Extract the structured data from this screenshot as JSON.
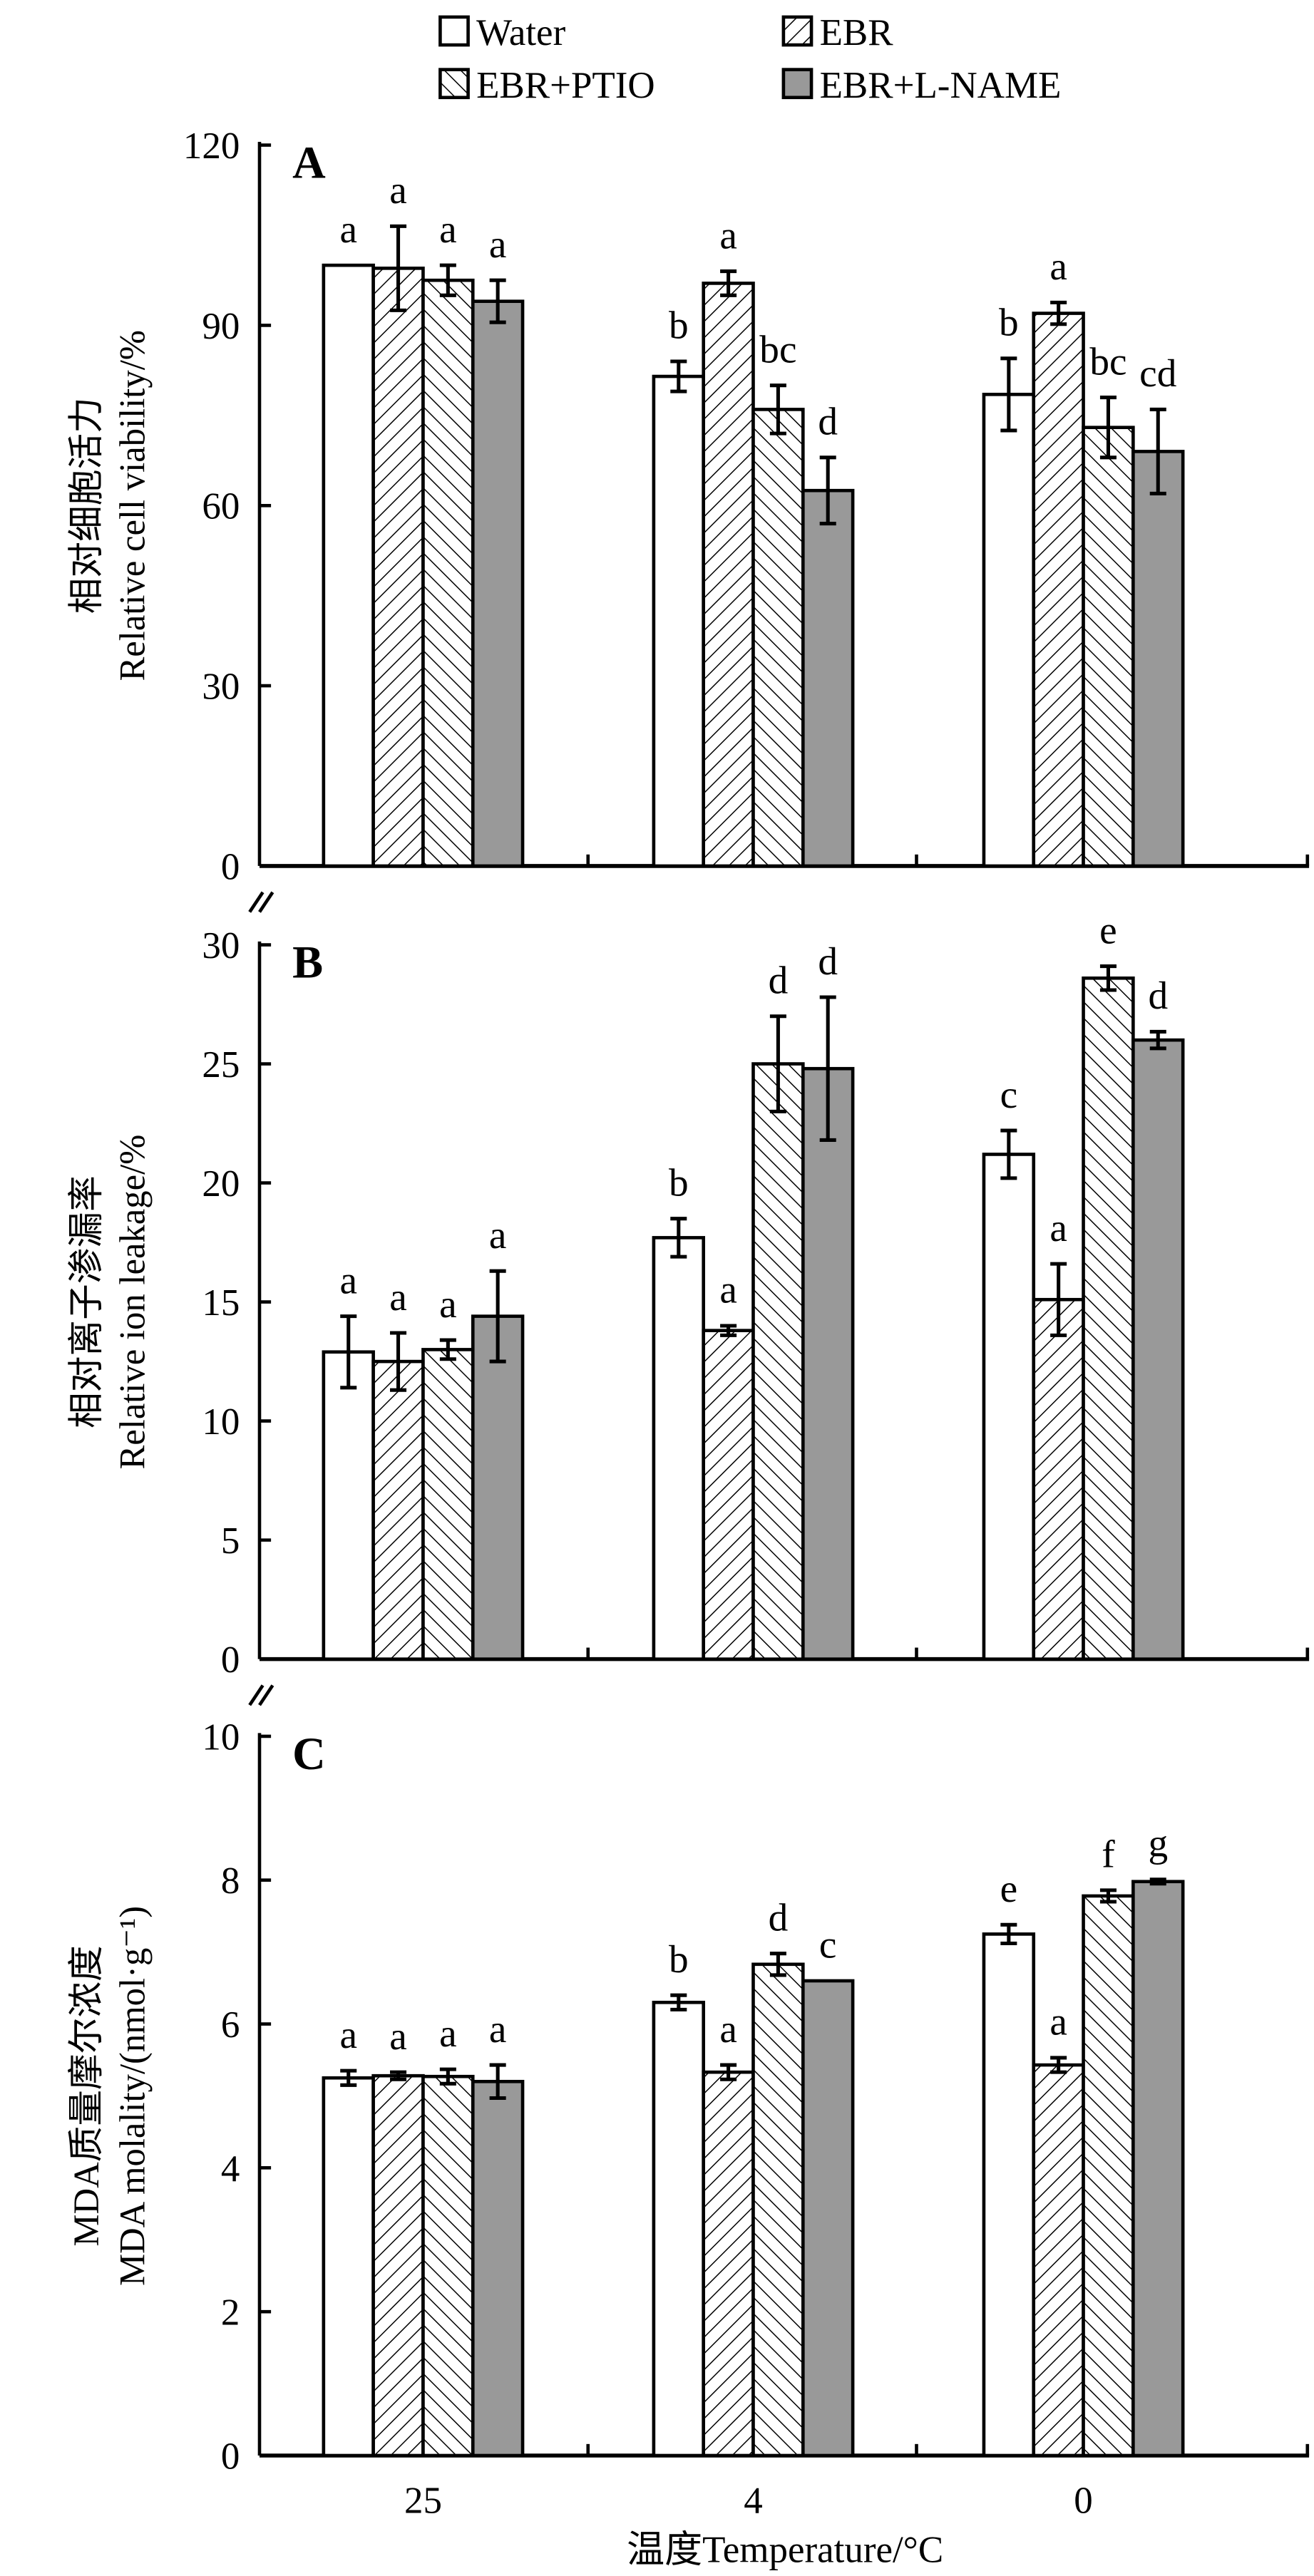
{
  "chart_data": {
    "type": "bar",
    "legend": {
      "placement": "top-center",
      "entries": [
        "Water",
        "EBR",
        "EBR+PTIO",
        "EBR+L-NAME"
      ]
    },
    "series_styles": [
      {
        "name": "Water",
        "fill": "#ffffff",
        "pattern": "none"
      },
      {
        "name": "EBR",
        "fill": "#ffffff",
        "pattern": "forward-hatch"
      },
      {
        "name": "EBR+PTIO",
        "fill": "#ffffff",
        "pattern": "back-hatch"
      },
      {
        "name": "EBR+L-NAME",
        "fill": "#999999",
        "pattern": "none"
      }
    ],
    "categories": [
      "25",
      "4",
      "0"
    ],
    "xlabel": "温度Temperature/°C",
    "panels": [
      {
        "label": "A",
        "ylabel_cn": "相对细胞活力",
        "ylabel_en": "Relative cell viability/%",
        "ylim": [
          0,
          120
        ],
        "yticks": [
          0,
          30,
          60,
          90,
          120
        ],
        "series": [
          {
            "name": "Water",
            "values": [
              100,
              81.5,
              78.5
            ],
            "errors": [
              0,
              2.5,
              6
            ],
            "letters": [
              "a",
              "b",
              "b"
            ]
          },
          {
            "name": "EBR",
            "values": [
              99.5,
              97,
              92
            ],
            "errors": [
              7,
              2,
              1.8
            ],
            "letters": [
              "a",
              "a",
              "a"
            ]
          },
          {
            "name": "EBR+PTIO",
            "values": [
              97.5,
              76,
              73
            ],
            "errors": [
              2.5,
              4,
              5
            ],
            "letters": [
              "a",
              "bc",
              "bc"
            ]
          },
          {
            "name": "EBR+L-NAME",
            "values": [
              94,
              62.5,
              69
            ],
            "errors": [
              3.5,
              5.5,
              7
            ],
            "letters": [
              "a",
              "d",
              "cd"
            ]
          }
        ]
      },
      {
        "label": "B",
        "ylabel_cn": "相对离子渗漏率",
        "ylabel_en": "Relative ion leakage/%",
        "ylim": [
          0,
          30
        ],
        "yticks": [
          0,
          5,
          10,
          15,
          20,
          25,
          30
        ],
        "series": [
          {
            "name": "Water",
            "values": [
              12.9,
              17.7,
              21.2
            ],
            "errors": [
              1.5,
              0.8,
              1.0
            ],
            "letters": [
              "a",
              "b",
              "c"
            ]
          },
          {
            "name": "EBR",
            "values": [
              12.5,
              13.8,
              15.1
            ],
            "errors": [
              1.2,
              0.2,
              1.5
            ],
            "letters": [
              "a",
              "a",
              "a"
            ]
          },
          {
            "name": "EBR+PTIO",
            "values": [
              13.0,
              25.0,
              28.6
            ],
            "errors": [
              0.4,
              2.0,
              0.5
            ],
            "letters": [
              "a",
              "d",
              "e"
            ]
          },
          {
            "name": "EBR+L-NAME",
            "values": [
              14.4,
              24.8,
              26.0
            ],
            "errors": [
              1.9,
              3.0,
              0.35
            ],
            "letters": [
              "a",
              "d",
              "d"
            ]
          }
        ]
      },
      {
        "label": "C",
        "ylabel_cn": "MDA质量摩尔浓度",
        "ylabel_en": "MDA molality/(nmol·g⁻¹)",
        "ylim": [
          0,
          10
        ],
        "yticks": [
          0,
          2,
          4,
          6,
          8,
          10
        ],
        "series": [
          {
            "name": "Water",
            "values": [
              5.25,
              6.3,
              7.25
            ],
            "errors": [
              0.1,
              0.1,
              0.13
            ],
            "letters": [
              "a",
              "b",
              "e"
            ]
          },
          {
            "name": "EBR",
            "values": [
              5.28,
              5.33,
              5.43
            ],
            "errors": [
              0.05,
              0.1,
              0.1
            ],
            "letters": [
              "a",
              "a",
              "a"
            ]
          },
          {
            "name": "EBR+PTIO",
            "values": [
              5.27,
              6.83,
              7.78
            ],
            "errors": [
              0.1,
              0.15,
              0.08
            ],
            "letters": [
              "a",
              "d",
              "f"
            ]
          },
          {
            "name": "EBR+L-NAME",
            "values": [
              5.2,
              6.6,
              7.98
            ],
            "errors": [
              0.23,
              0,
              0.03
            ],
            "letters": [
              "a",
              "c",
              "g"
            ]
          }
        ]
      }
    ]
  }
}
